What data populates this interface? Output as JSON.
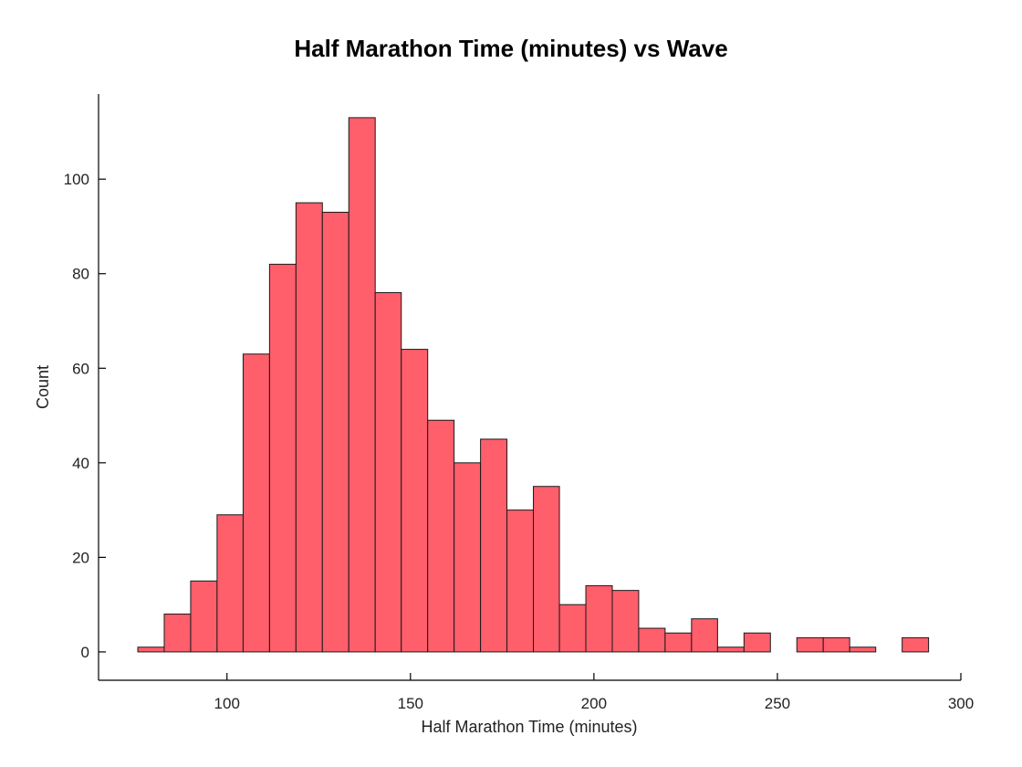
{
  "chart_data": {
    "type": "bar",
    "title": "Half Marathon Time (minutes) vs Wave",
    "xlabel": "Half Marathon Time (minutes)",
    "ylabel": "Count",
    "xlim": [
      65,
      300
    ],
    "ylim": [
      -6,
      118
    ],
    "xticks": [
      100,
      150,
      200,
      250,
      300
    ],
    "yticks": [
      0,
      20,
      40,
      60,
      80,
      100
    ],
    "bar_color": "#ff5e6b",
    "bins": [
      {
        "x0": 75.7,
        "x1": 82.9,
        "count": 1
      },
      {
        "x0": 82.9,
        "x1": 90.1,
        "count": 8
      },
      {
        "x0": 90.1,
        "x1": 97.3,
        "count": 15
      },
      {
        "x0": 97.3,
        "x1": 104.4,
        "count": 29
      },
      {
        "x0": 104.4,
        "x1": 111.6,
        "count": 63
      },
      {
        "x0": 111.6,
        "x1": 118.8,
        "count": 82
      },
      {
        "x0": 118.8,
        "x1": 126.0,
        "count": 95
      },
      {
        "x0": 126.0,
        "x1": 133.2,
        "count": 93
      },
      {
        "x0": 133.2,
        "x1": 140.4,
        "count": 113
      },
      {
        "x0": 140.4,
        "x1": 147.5,
        "count": 76
      },
      {
        "x0": 147.5,
        "x1": 154.7,
        "count": 64
      },
      {
        "x0": 154.7,
        "x1": 161.9,
        "count": 49
      },
      {
        "x0": 161.9,
        "x1": 169.1,
        "count": 40
      },
      {
        "x0": 169.1,
        "x1": 176.3,
        "count": 45
      },
      {
        "x0": 176.3,
        "x1": 183.5,
        "count": 30
      },
      {
        "x0": 183.5,
        "x1": 190.6,
        "count": 35
      },
      {
        "x0": 190.6,
        "x1": 197.8,
        "count": 10
      },
      {
        "x0": 197.8,
        "x1": 205.0,
        "count": 14
      },
      {
        "x0": 205.0,
        "x1": 212.2,
        "count": 13
      },
      {
        "x0": 212.2,
        "x1": 219.4,
        "count": 5
      },
      {
        "x0": 219.4,
        "x1": 226.6,
        "count": 4
      },
      {
        "x0": 226.6,
        "x1": 233.7,
        "count": 7
      },
      {
        "x0": 233.7,
        "x1": 240.9,
        "count": 1
      },
      {
        "x0": 240.9,
        "x1": 248.1,
        "count": 4
      },
      {
        "x0": 248.1,
        "x1": 255.3,
        "count": 0
      },
      {
        "x0": 255.3,
        "x1": 262.5,
        "count": 3
      },
      {
        "x0": 262.5,
        "x1": 269.7,
        "count": 3
      },
      {
        "x0": 269.7,
        "x1": 276.8,
        "count": 1
      },
      {
        "x0": 276.8,
        "x1": 284.0,
        "count": 0
      },
      {
        "x0": 284.0,
        "x1": 291.2,
        "count": 3
      }
    ]
  }
}
